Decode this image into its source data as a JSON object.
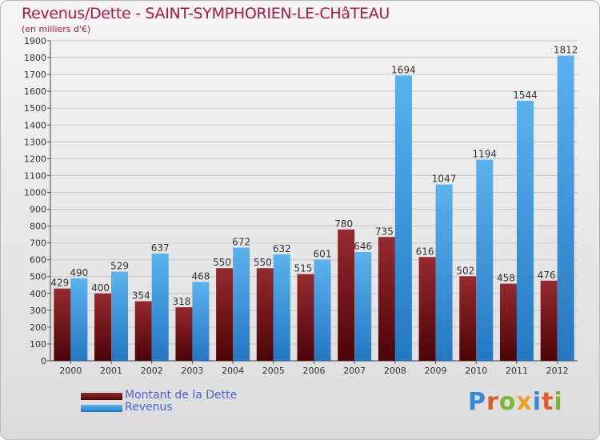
{
  "header": {
    "title": "Revenus/Dette - SAINT-SYMPHORIEN-LE-CHâTEAU",
    "subtitle": "(en milliers d'€)"
  },
  "legend": {
    "items": [
      {
        "label": "Montant de la Dette",
        "color": "#7a1014"
      },
      {
        "label": "Revenus",
        "color": "#3f9be0"
      }
    ]
  },
  "logo": {
    "text": "Proxiti"
  },
  "chart_data": {
    "type": "bar",
    "title": "Revenus/Dette - SAINT-SYMPHORIEN-LE-CHâTEAU",
    "subtitle": "(en milliers d'€)",
    "categories": [
      "2000",
      "2001",
      "2002",
      "2003",
      "2004",
      "2005",
      "2006",
      "2007",
      "2008",
      "2009",
      "2010",
      "2011",
      "2012"
    ],
    "series": [
      {
        "name": "Montant de la Dette",
        "color": "#7a1014",
        "values": [
          429,
          400,
          354,
          318,
          550,
          550,
          515,
          780,
          735,
          616,
          502,
          458,
          476
        ]
      },
      {
        "name": "Revenus",
        "color": "#3f9be0",
        "values": [
          490,
          529,
          637,
          468,
          672,
          632,
          601,
          646,
          1694,
          1047,
          1194,
          1544,
          1812
        ]
      }
    ],
    "ylim": [
      0,
      1900
    ],
    "yticks": [
      0,
      100,
      200,
      300,
      400,
      500,
      600,
      700,
      800,
      900,
      1000,
      1100,
      1200,
      1300,
      1400,
      1500,
      1600,
      1700,
      1800,
      1900
    ],
    "grid": true,
    "legend_position": "bottom-left"
  }
}
